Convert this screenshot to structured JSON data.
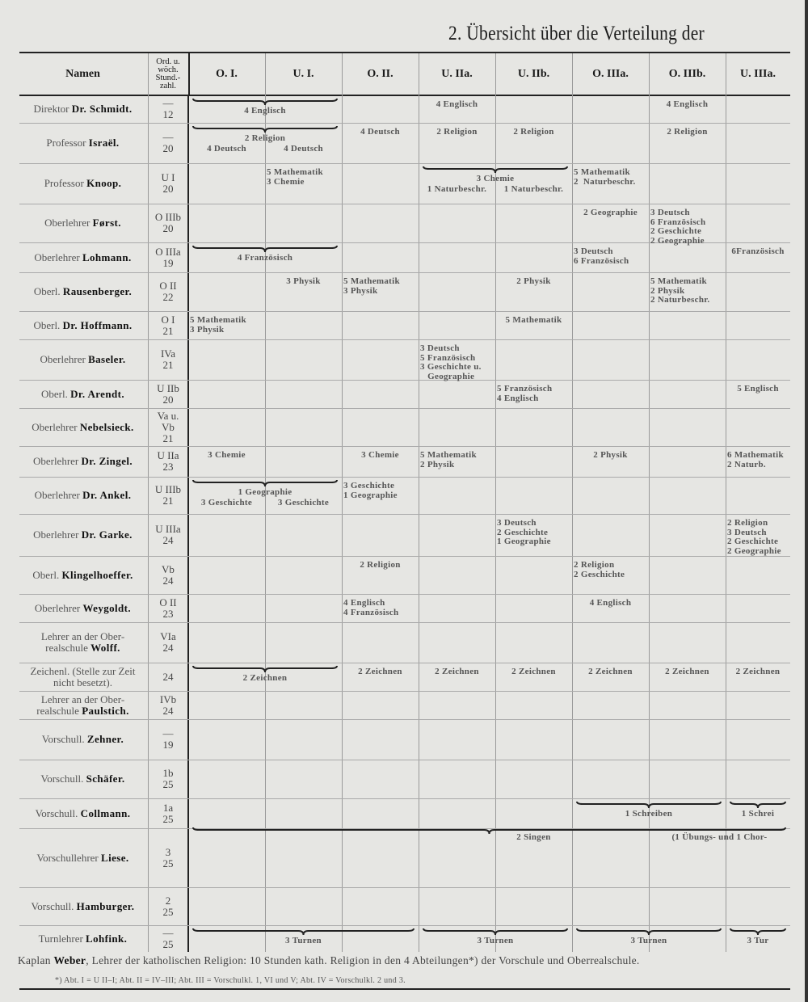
{
  "page_title": "2. Übersicht über die Verteilung der",
  "header": {
    "names": "Namen",
    "ord": [
      "Ord. u.",
      "wöch.",
      "Stund.-",
      "zahl."
    ],
    "classes": [
      "O. I.",
      "U. I.",
      "O. II.",
      "U. IIa.",
      "U. IIb.",
      "O. IIIa.",
      "O. IIIb.",
      "U. IIIa."
    ]
  },
  "rows": [
    {
      "line1": "",
      "prefix": "Direktor",
      "name": "Dr. Schmidt.",
      "ord": [
        "—",
        "12"
      ],
      "cells": [
        {
          "col": 0,
          "span": 2,
          "brace": true,
          "text": [
            "4 Englisch"
          ]
        },
        {
          "col": 3,
          "text": [
            "4 Englisch"
          ]
        },
        {
          "col": 6,
          "text": [
            "4 Englisch"
          ]
        }
      ]
    },
    {
      "line1": "",
      "prefix": "Professor",
      "name": "Israël.",
      "ord": [
        "—",
        "20"
      ],
      "cells": [
        {
          "col": 0,
          "span": 2,
          "brace": true,
          "text": [
            "2 Religion"
          ],
          "below": [
            "4 Deutsch",
            "4 Deutsch"
          ]
        },
        {
          "col": 2,
          "text": [
            "4 Deutsch"
          ]
        },
        {
          "col": 3,
          "text": [
            "2 Religion"
          ]
        },
        {
          "col": 4,
          "text": [
            "2 Religion"
          ]
        },
        {
          "col": 6,
          "text": [
            "2 Religion"
          ]
        }
      ]
    },
    {
      "line1": "",
      "prefix": "Professor",
      "name": "Knoop.",
      "ord": [
        "U I",
        "20"
      ],
      "cells": [
        {
          "col": 1,
          "text": [
            "5 Mathematik",
            "3 Chemie"
          ]
        },
        {
          "col": 3,
          "span": 2,
          "brace": true,
          "text": [
            "3 Chemie"
          ],
          "below": [
            "1 Naturbeschr.",
            "1 Naturbeschr."
          ]
        },
        {
          "col": 5,
          "text": [
            "5 Mathematik",
            "2  Naturbeschr."
          ]
        }
      ]
    },
    {
      "line1": "",
      "prefix": "Oberlehrer",
      "name": "Først.",
      "ord": [
        "O IIIb",
        "20"
      ],
      "cells": [
        {
          "col": 5,
          "text": [
            "2 Geographie"
          ]
        },
        {
          "col": 6,
          "text": [
            "3 Deutsch",
            "6 Französisch",
            "2 Geschichte",
            "2 Geographie"
          ]
        }
      ]
    },
    {
      "line1": "",
      "prefix": "Oberlehrer",
      "name": "Lohmann.",
      "ord": [
        "O IIIa",
        "19"
      ],
      "cells": [
        {
          "col": 0,
          "span": 2,
          "brace": true,
          "text": [
            "4 Französisch"
          ]
        },
        {
          "col": 5,
          "text": [
            "3 Deutsch",
            "6 Französisch"
          ]
        },
        {
          "col": 7,
          "text": [
            "6Französisch"
          ]
        }
      ]
    },
    {
      "line1": "",
      "prefix": "Oberl.",
      "name": "Rausenberger.",
      "ord": [
        "O II",
        "22"
      ],
      "cells": [
        {
          "col": 1,
          "text": [
            "3 Physik"
          ]
        },
        {
          "col": 2,
          "text": [
            "5 Mathematik",
            "3 Physik"
          ]
        },
        {
          "col": 4,
          "text": [
            "2 Physik"
          ]
        },
        {
          "col": 6,
          "text": [
            "5 Mathematik",
            "2 Physik",
            "2 Naturbeschr."
          ]
        }
      ]
    },
    {
      "line1": "",
      "prefix": "Oberl.",
      "name": "Dr. Hoffmann.",
      "ord": [
        "O I",
        "21"
      ],
      "cells": [
        {
          "col": 0,
          "text": [
            "5 Mathematik",
            "3 Physik"
          ]
        },
        {
          "col": 4,
          "text": [
            "5 Mathematik"
          ]
        }
      ]
    },
    {
      "line1": "",
      "prefix": "Oberlehrer",
      "name": "Baseler.",
      "ord": [
        "IVa",
        "21"
      ],
      "cells": [
        {
          "col": 3,
          "text": [
            "3 Deutsch",
            "5 Französisch",
            "3 Geschichte u.",
            "   Geographie"
          ]
        }
      ]
    },
    {
      "line1": "",
      "prefix": "Oberl.",
      "name": "Dr. Arendt.",
      "ord": [
        "U IIb",
        "20"
      ],
      "cells": [
        {
          "col": 4,
          "text": [
            "5 Französisch",
            "4 Englisch"
          ]
        },
        {
          "col": 7,
          "text": [
            "5 Englisch"
          ]
        }
      ]
    },
    {
      "line1": "",
      "prefix": "Oberlehrer",
      "name": "Nebelsieck.",
      "ord": [
        "Va u.",
        "Vb",
        "21"
      ],
      "cells": []
    },
    {
      "line1": "",
      "prefix": "Oberlehrer",
      "name": "Dr. Zingel.",
      "ord": [
        "U IIa",
        "23"
      ],
      "cells": [
        {
          "col": 0,
          "text": [
            "3 Chemie"
          ]
        },
        {
          "col": 2,
          "text": [
            "3 Chemie"
          ]
        },
        {
          "col": 3,
          "text": [
            "5 Mathematik",
            "2 Physik"
          ]
        },
        {
          "col": 5,
          "text": [
            "2 Physik"
          ]
        },
        {
          "col": 7,
          "text": [
            "6 Mathematik",
            "2 Naturb."
          ]
        }
      ]
    },
    {
      "line1": "",
      "prefix": "Oberlehrer",
      "name": "Dr. Ankel.",
      "ord": [
        "U IIIb",
        "21"
      ],
      "cells": [
        {
          "col": 0,
          "span": 2,
          "brace": true,
          "text": [
            "1 Geographie"
          ],
          "below": [
            "3 Geschichte",
            "3 Geschichte"
          ]
        },
        {
          "col": 2,
          "text": [
            "3 Geschichte",
            "1 Geographie"
          ]
        }
      ]
    },
    {
      "line1": "",
      "prefix": "Oberlehrer",
      "name": "Dr. Garke.",
      "ord": [
        "U IIIa",
        "24"
      ],
      "cells": [
        {
          "col": 4,
          "text": [
            "3 Deutsch",
            "2 Geschichte",
            "1 Geographie"
          ]
        },
        {
          "col": 7,
          "text": [
            "2 Religion",
            "3 Deutsch",
            "2 Geschichte",
            "2 Geographie"
          ]
        }
      ]
    },
    {
      "line1": "",
      "prefix": "Oberl.",
      "name": "Klingelhoeffer.",
      "ord": [
        "Vb",
        "24"
      ],
      "cells": [
        {
          "col": 2,
          "text": [
            "2 Religion"
          ]
        },
        {
          "col": 5,
          "text": [
            "2 Religion",
            "2 Geschichte"
          ]
        }
      ]
    },
    {
      "line1": "",
      "prefix": "Oberlehrer",
      "name": "Weygoldt.",
      "ord": [
        "O II",
        "23"
      ],
      "cells": [
        {
          "col": 2,
          "text": [
            "4 Englisch",
            "4 Französisch"
          ]
        },
        {
          "col": 5,
          "text": [
            "4 Englisch"
          ]
        }
      ]
    },
    {
      "line1": "Lehrer an der Ober-",
      "prefix": "realschule",
      "name": "Wolff.",
      "ord": [
        "VIa",
        "24"
      ],
      "cells": []
    },
    {
      "line1": "Zeichenl. (Stelle zur Zeit",
      "prefix": "nicht besetzt).",
      "name": "",
      "ord": [
        "24"
      ],
      "cells": [
        {
          "col": 0,
          "span": 2,
          "brace": true,
          "text": [
            "2 Zeichnen"
          ]
        },
        {
          "col": 2,
          "text": [
            "2 Zeichnen"
          ]
        },
        {
          "col": 3,
          "text": [
            "2 Zeichnen"
          ]
        },
        {
          "col": 4,
          "text": [
            "2 Zeichnen"
          ]
        },
        {
          "col": 5,
          "text": [
            "2 Zeichnen"
          ]
        },
        {
          "col": 6,
          "text": [
            "2 Zeichnen"
          ]
        },
        {
          "col": 7,
          "text": [
            "2 Zeichnen"
          ]
        }
      ]
    },
    {
      "line1": "Lehrer an der Ober-",
      "prefix": "realschule",
      "name": "Paulstich.",
      "ord": [
        "IVb",
        "24"
      ],
      "cells": []
    },
    {
      "line1": "",
      "prefix": "Vorschull.",
      "name": "Zehner.",
      "ord": [
        "—",
        "19"
      ],
      "cells": []
    },
    {
      "line1": "",
      "prefix": "Vorschull.",
      "name": "Schäfer.",
      "ord": [
        "1b",
        "25"
      ],
      "cells": []
    },
    {
      "line1": "",
      "prefix": "Vorschull.",
      "name": "Collmann.",
      "ord": [
        "1a",
        "25"
      ],
      "cells": [
        {
          "col": 5,
          "span": 2,
          "brace": true,
          "text": [
            "1 Schreiben"
          ]
        },
        {
          "col": 7,
          "brace": true,
          "text": [
            "1 Schrei"
          ]
        }
      ]
    },
    {
      "line1": "",
      "prefix": "Vorschullehrer",
      "name": "Liese.",
      "ord": [
        "3",
        "25"
      ],
      "cells": [
        {
          "col": 0,
          "span": 8,
          "brace": true,
          "text": []
        },
        {
          "col": 4,
          "text": [
            "2 Singen"
          ]
        },
        {
          "col": 6,
          "span": 2,
          "text": [
            "(1 Übungs- und 1 Chor-"
          ]
        }
      ]
    },
    {
      "line1": "",
      "prefix": "Vorschull.",
      "name": "Hamburger.",
      "ord": [
        "2",
        "25"
      ],
      "cells": []
    },
    {
      "line1": "",
      "prefix": "Turnlehrer",
      "name": "Lohfink.",
      "ord": [
        "—",
        "25"
      ],
      "cells": [
        {
          "col": 0,
          "span": 3,
          "brace": true,
          "text": [
            "3 Turnen"
          ]
        },
        {
          "col": 3,
          "span": 2,
          "brace": true,
          "text": [
            "3 Turnen"
          ]
        },
        {
          "col": 5,
          "span": 2,
          "brace": true,
          "text": [
            "3 Turnen"
          ]
        },
        {
          "col": 7,
          "brace": true,
          "text": [
            "3 Tur"
          ]
        }
      ]
    }
  ],
  "kaplan": {
    "prefix": "Kaplan",
    "name": "Weber",
    "text": ", Lehrer der katholischen Religion: 10 Stunden kath. Religion in den 4 Abteilungen*) der Vorschule und Oberrealschule."
  },
  "footnote": "*) Abt. I = U II–I; Abt. II = IV–III; Abt. III = Vorschulkl. 1, VI und V; Abt. IV = Vorschulkl. 2 und 3."
}
